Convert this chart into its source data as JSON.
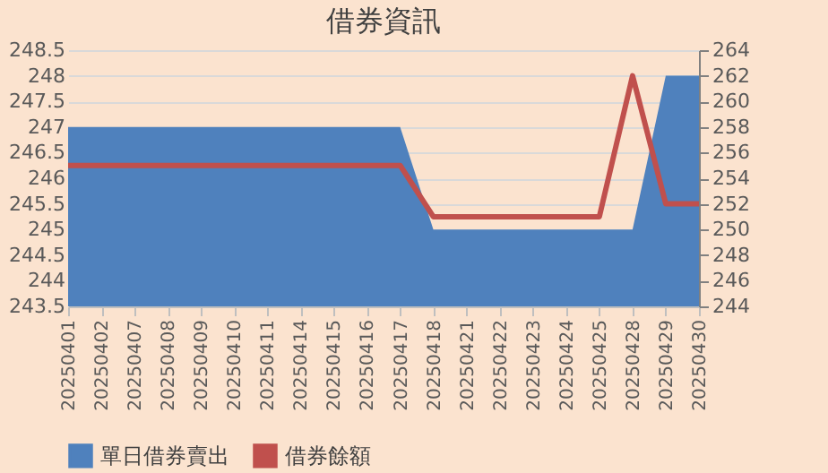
{
  "chart_data": {
    "type": "area",
    "title": "借券資訊",
    "categories": [
      "20250401",
      "20250402",
      "20250407",
      "20250408",
      "20250409",
      "20250410",
      "20250411",
      "20250414",
      "20250415",
      "20250416",
      "20250417",
      "20250418",
      "20250421",
      "20250422",
      "20250423",
      "20250424",
      "20250425",
      "20250428",
      "20250429",
      "20250430"
    ],
    "series": [
      {
        "name": "單日借券賣出",
        "color": "#4f81bd",
        "values": [
          247,
          247,
          247,
          247,
          247,
          247,
          247,
          247,
          247,
          247,
          247,
          245,
          245,
          245,
          245,
          245,
          245,
          245,
          248,
          248
        ]
      },
      {
        "name": "借券餘額",
        "type": "line",
        "axis": "y2",
        "color": "#c0504d",
        "values": [
          255,
          255,
          255,
          255,
          255,
          255,
          255,
          255,
          255,
          255,
          255,
          251,
          251,
          251,
          251,
          251,
          251,
          262,
          252,
          252
        ]
      }
    ],
    "ylim": [
      243.5,
      248.5
    ],
    "yticks": [
      243.5,
      244,
      244.5,
      245,
      245.5,
      246,
      246.5,
      247,
      247.5,
      248,
      248.5
    ],
    "y2lim": [
      244,
      264
    ],
    "y2ticks": [
      244,
      246,
      248,
      250,
      252,
      254,
      256,
      258,
      260,
      262,
      264
    ],
    "grid": "y",
    "legend": "bottom"
  }
}
